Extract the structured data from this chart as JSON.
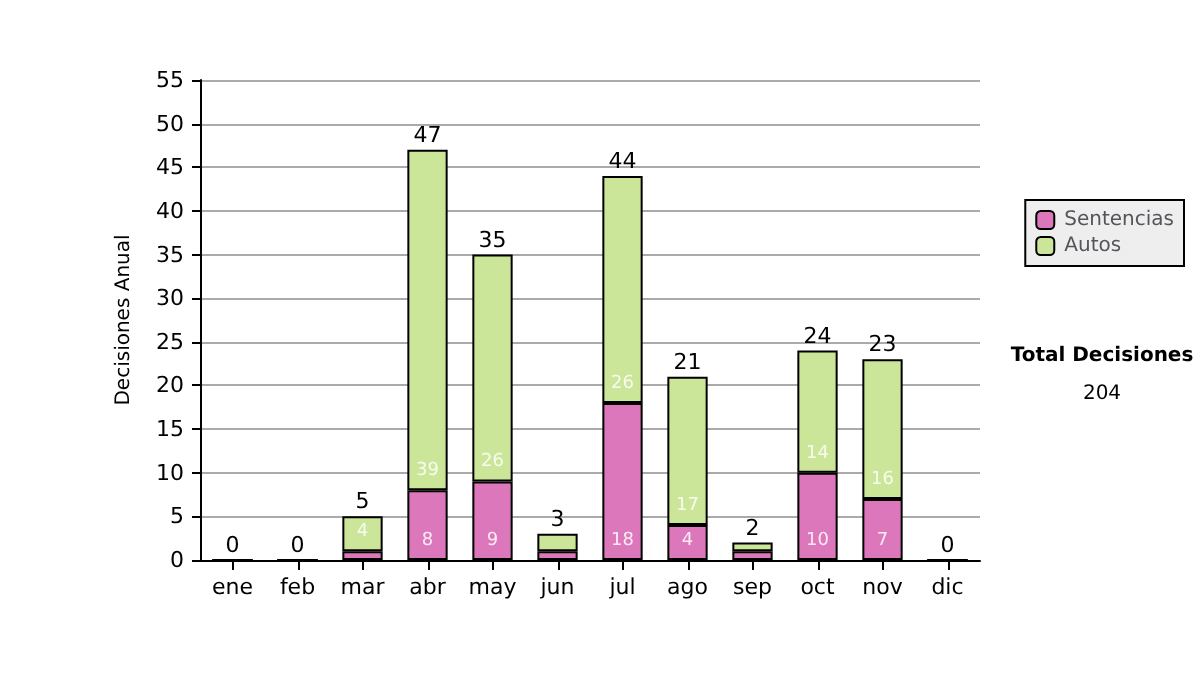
{
  "chart_data": {
    "type": "bar",
    "stacked": true,
    "ylabel": "Decisiones Anual",
    "categories": [
      "ene",
      "feb",
      "mar",
      "abr",
      "may",
      "jun",
      "jul",
      "ago",
      "sep",
      "oct",
      "nov",
      "dic"
    ],
    "series": [
      {
        "name": "Sentencias",
        "color": "#dd77bb",
        "values": [
          0,
          0,
          1,
          8,
          9,
          1,
          18,
          4,
          1,
          10,
          7,
          0
        ],
        "value_labels": [
          null,
          null,
          null,
          "8",
          "9",
          null,
          "18",
          "4",
          null,
          "10",
          "7",
          null
        ]
      },
      {
        "name": "Autos",
        "color": "#cce699",
        "values": [
          0,
          0,
          4,
          39,
          26,
          2,
          26,
          17,
          1,
          14,
          16,
          0
        ],
        "value_labels": [
          null,
          null,
          "4",
          "39",
          "26",
          null,
          "26",
          "17",
          null,
          "14",
          "16",
          null
        ]
      }
    ],
    "totals": [
      "0",
      "0",
      "5",
      "47",
      "35",
      "3",
      "44",
      "21",
      "2",
      "24",
      "23",
      "0"
    ],
    "ylim": [
      0,
      55
    ],
    "yticks": [
      0,
      5,
      10,
      15,
      20,
      25,
      30,
      35,
      40,
      45,
      50,
      55
    ],
    "grid": "y",
    "legend": "right",
    "annotations": [
      "Total Decisiones",
      "204"
    ]
  }
}
